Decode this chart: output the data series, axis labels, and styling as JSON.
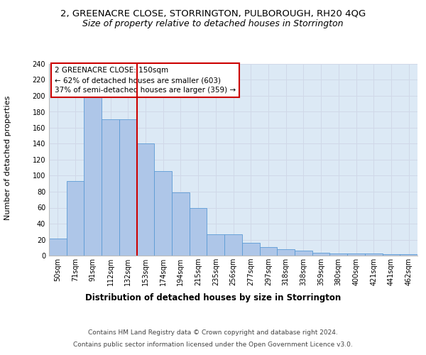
{
  "title": "2, GREENACRE CLOSE, STORRINGTON, PULBOROUGH, RH20 4QG",
  "subtitle": "Size of property relative to detached houses in Storrington",
  "xlabel": "Distribution of detached houses by size in Storrington",
  "ylabel": "Number of detached properties",
  "categories": [
    "50sqm",
    "71sqm",
    "91sqm",
    "112sqm",
    "132sqm",
    "153sqm",
    "174sqm",
    "194sqm",
    "215sqm",
    "235sqm",
    "256sqm",
    "277sqm",
    "297sqm",
    "318sqm",
    "338sqm",
    "359sqm",
    "380sqm",
    "400sqm",
    "421sqm",
    "441sqm",
    "462sqm"
  ],
  "values": [
    21,
    93,
    198,
    171,
    171,
    140,
    106,
    79,
    60,
    27,
    27,
    16,
    11,
    8,
    6,
    4,
    3,
    3,
    3,
    2,
    2
  ],
  "bar_color": "#aec6e8",
  "bar_edge_color": "#5b9bd5",
  "vline_color": "#cc0000",
  "vline_x_index": 4,
  "annotation_text": "2 GREENACRE CLOSE: 150sqm\n← 62% of detached houses are smaller (603)\n37% of semi-detached houses are larger (359) →",
  "annotation_box_color": "#ffffff",
  "annotation_box_edge_color": "#cc0000",
  "ylim": [
    0,
    240
  ],
  "yticks": [
    0,
    20,
    40,
    60,
    80,
    100,
    120,
    140,
    160,
    180,
    200,
    220,
    240
  ],
  "grid_color": "#d0d8e8",
  "background_color": "#dce9f5",
  "footer_line1": "Contains HM Land Registry data © Crown copyright and database right 2024.",
  "footer_line2": "Contains public sector information licensed under the Open Government Licence v3.0.",
  "title_fontsize": 9.5,
  "subtitle_fontsize": 9,
  "xlabel_fontsize": 8.5,
  "ylabel_fontsize": 8,
  "tick_fontsize": 7,
  "annotation_fontsize": 7.5,
  "footer_fontsize": 6.5
}
